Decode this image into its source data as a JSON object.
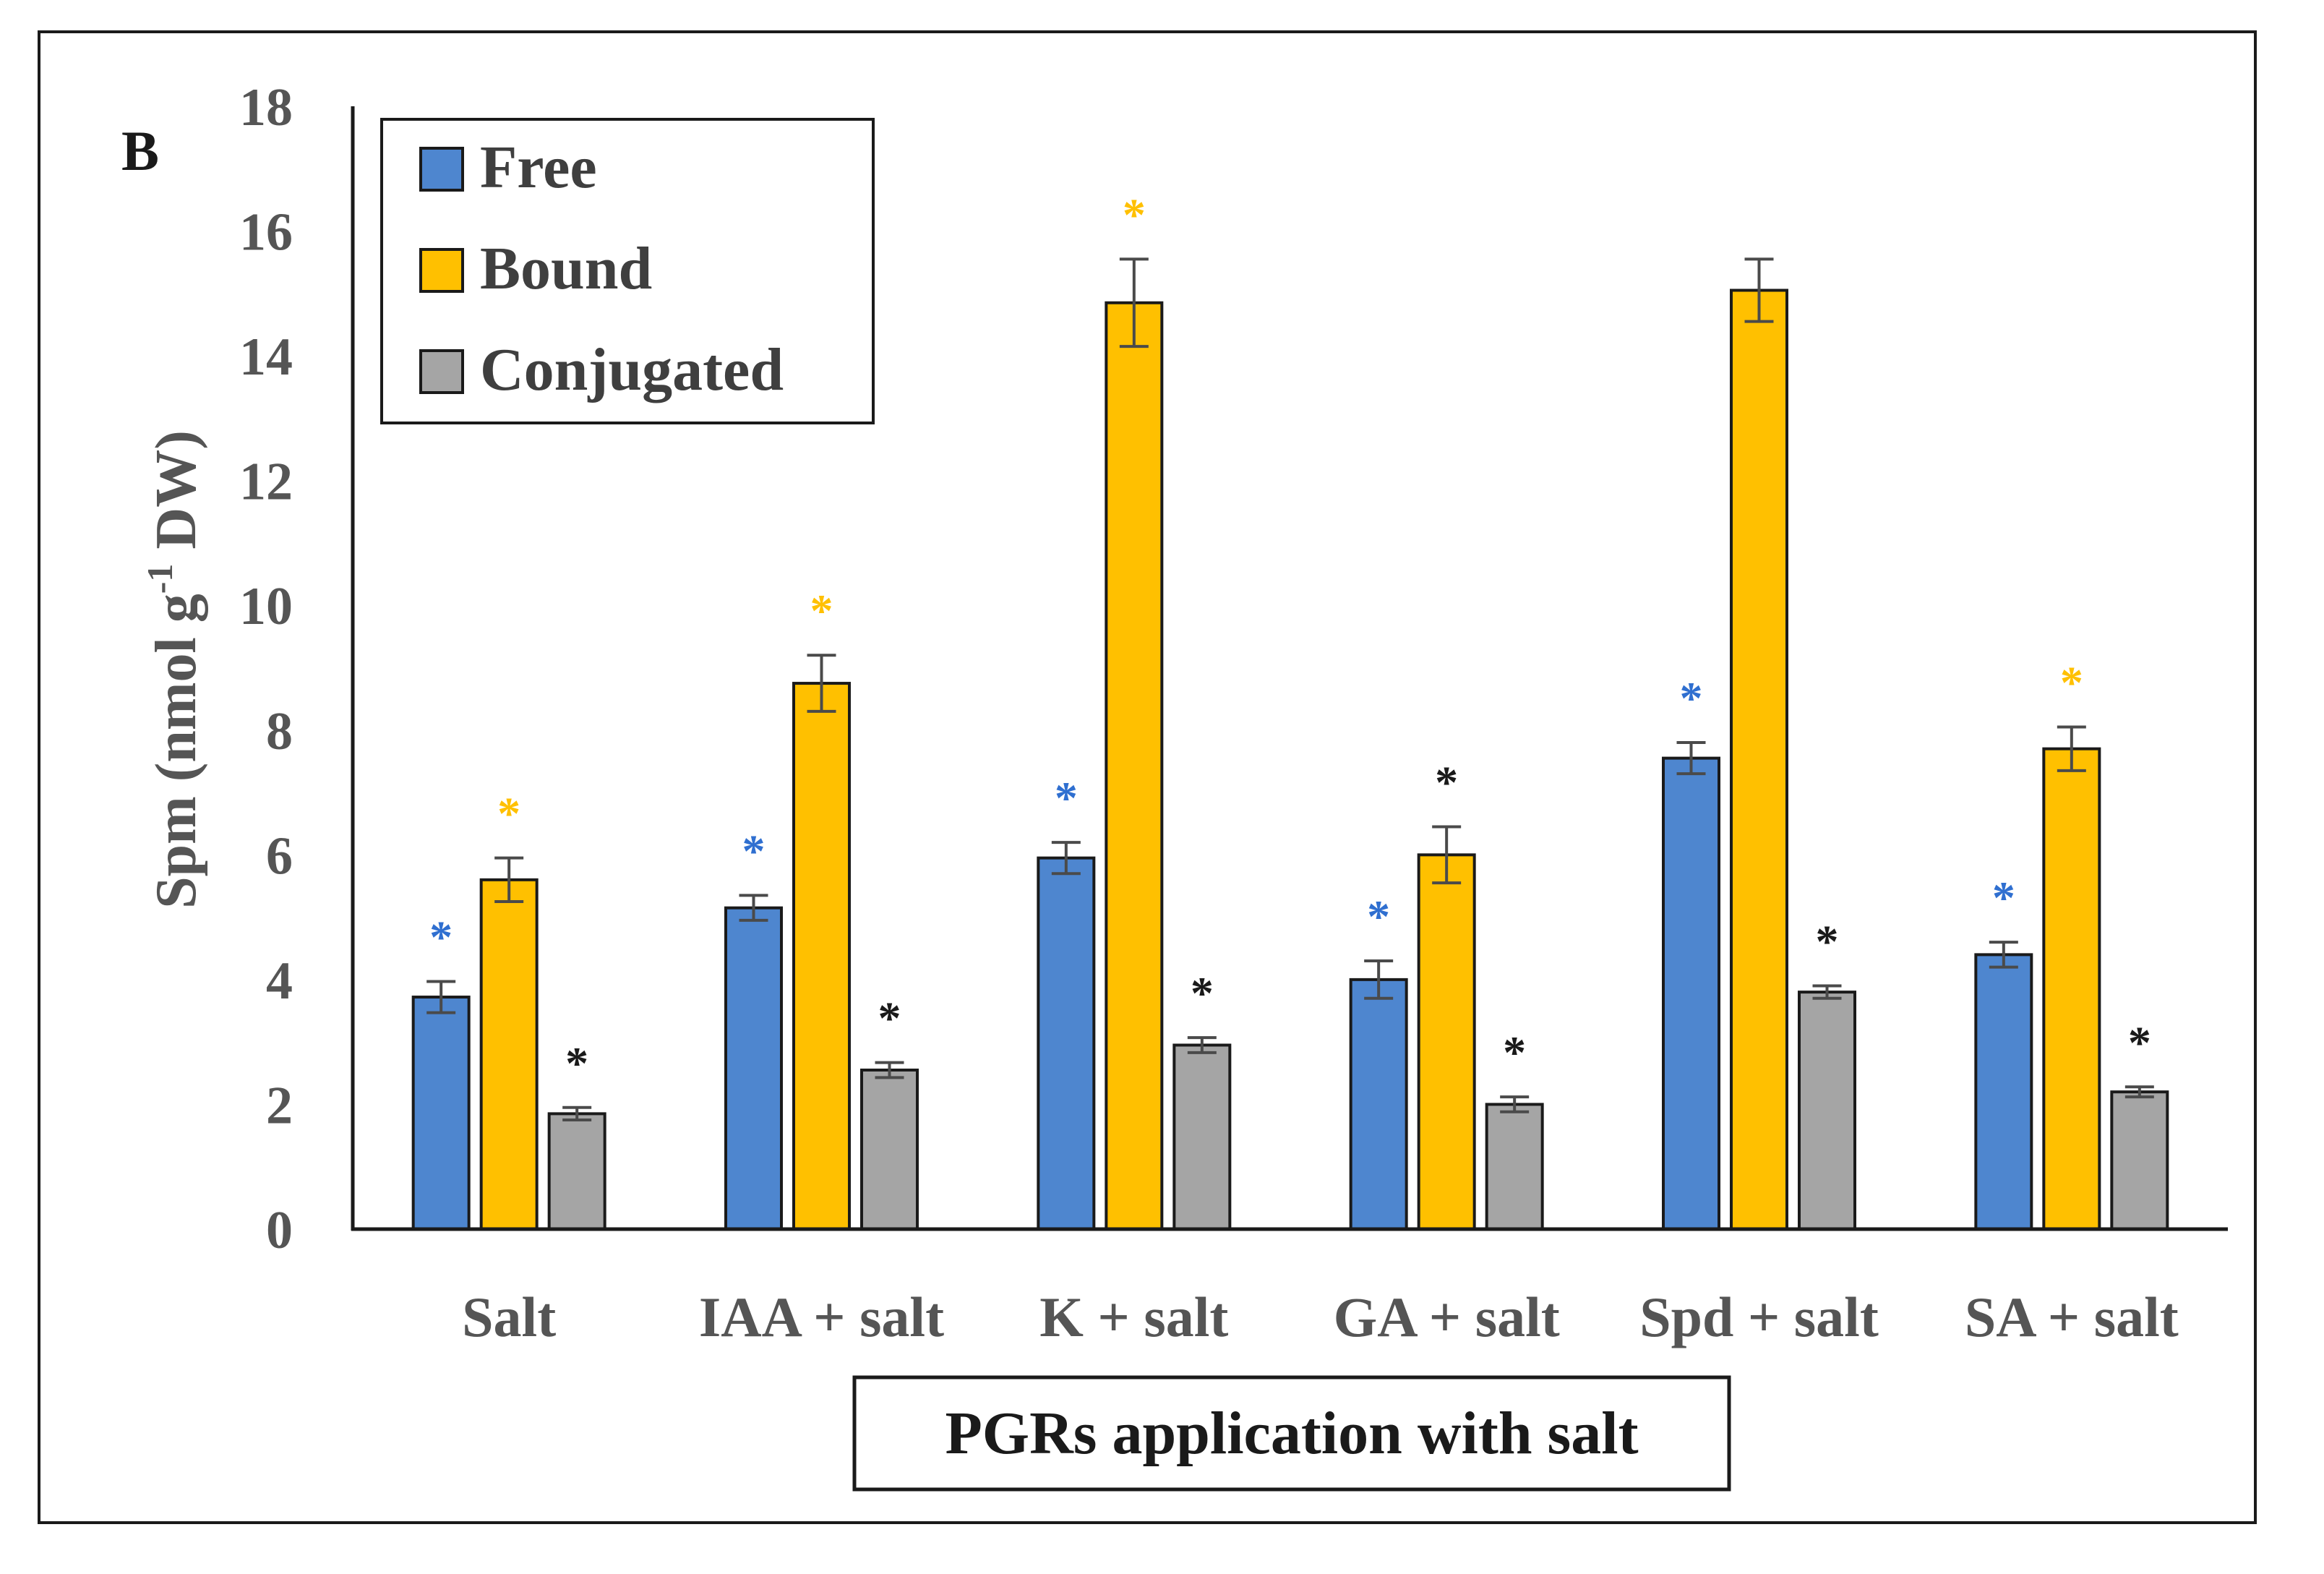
{
  "chart_data": {
    "type": "bar",
    "panel_label": "B",
    "title": "",
    "ylabel_main": "Spm (nmol g",
    "ylabel_sup": "-1",
    "ylabel_tail": " DW)",
    "xlabel": "PGRs application with salt",
    "ylim": [
      0,
      18
    ],
    "yticks": [
      0,
      2,
      4,
      6,
      8,
      10,
      12,
      14,
      16,
      18
    ],
    "categories": [
      "Salt",
      "IAA + salt",
      "K + salt",
      "GA + salt",
      "Spd + salt",
      "SA + salt"
    ],
    "series": [
      {
        "name": "Free",
        "color": "#4e86cf",
        "values": [
          3.72,
          5.15,
          5.95,
          4.0,
          7.55,
          4.4
        ],
        "errors": [
          0.25,
          0.2,
          0.25,
          0.3,
          0.25,
          0.2
        ],
        "markers": [
          "*",
          "*",
          "*",
          "*",
          "*",
          "*"
        ],
        "marker_colors": [
          "#2f6fd0",
          "#2f6fd0",
          "#2f6fd0",
          "#2f6fd0",
          "#2f6fd0",
          "#2f6fd0"
        ]
      },
      {
        "name": "Bound",
        "color": "#ffc000",
        "values": [
          5.6,
          8.75,
          14.85,
          6.0,
          15.05,
          7.7
        ],
        "errors": [
          0.35,
          0.45,
          0.7,
          0.45,
          0.5,
          0.35
        ],
        "markers": [
          "*",
          "*",
          "*",
          "*",
          "",
          "*"
        ],
        "marker_colors": [
          "#ffc000",
          "#ffc000",
          "#ffc000",
          "#1a1a1a",
          "#1a1a1a",
          "#ffc000"
        ]
      },
      {
        "name": "Conjugated",
        "color": "#a5a5a5",
        "values": [
          1.85,
          2.55,
          2.95,
          2.0,
          3.8,
          2.2
        ],
        "errors": [
          0.1,
          0.12,
          0.12,
          0.12,
          0.1,
          0.08
        ],
        "markers": [
          "*",
          "*",
          "*",
          "*",
          "*",
          "*"
        ],
        "marker_colors": [
          "#1a1a1a",
          "#1a1a1a",
          "#1a1a1a",
          "#1a1a1a",
          "#1a1a1a",
          "#1a1a1a"
        ]
      }
    ],
    "legend": [
      "Free",
      "Bound",
      "Conjugated"
    ],
    "legend_position": "top-left",
    "grid": false
  }
}
